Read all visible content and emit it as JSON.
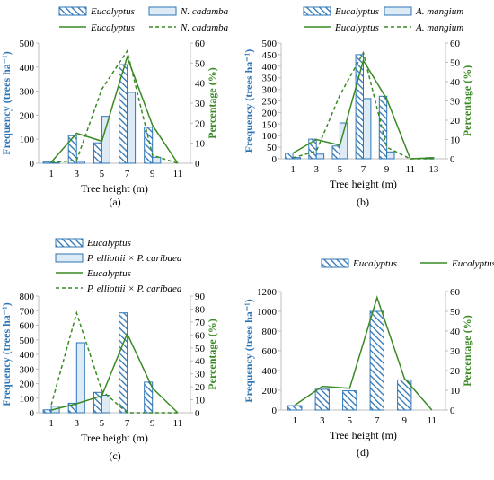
{
  "chart_data": [
    {
      "id": "a",
      "type": "bar+line",
      "panel_label": "(a)",
      "xlabel": "Tree height (m)",
      "ylabel_left": "Frequency (trees ha⁻¹)",
      "ylabel_right": "Percentage (%)",
      "categories": [
        "1",
        "3",
        "5",
        "7",
        "9",
        "11"
      ],
      "ylim_left": [
        0,
        500
      ],
      "yticks_left": [
        0,
        100,
        200,
        300,
        400,
        500
      ],
      "ylim_right": [
        0,
        60
      ],
      "yticks_right": [
        0,
        10,
        20,
        30,
        40,
        50,
        60
      ],
      "legend": [
        {
          "label": "Eucalyptus",
          "kind": "hatched-bar"
        },
        {
          "label": "N. cadamba",
          "kind": "light-bar"
        },
        {
          "label": "Eucalyptus",
          "kind": "solid-line"
        },
        {
          "label": "N. cadamba",
          "kind": "dashed-line"
        }
      ],
      "series": [
        {
          "name": "Eucalyptus",
          "role": "bar",
          "style": "hatched",
          "x": [
            1,
            3,
            5,
            7,
            9
          ],
          "values": [
            5,
            115,
            85,
            410,
            150
          ]
        },
        {
          "name": "N. cadamba",
          "role": "bar",
          "style": "light",
          "x": [
            1,
            3,
            5,
            7,
            9
          ],
          "values": [
            2,
            8,
            195,
            295,
            25
          ]
        },
        {
          "name": "Eucalyptus",
          "role": "line",
          "style": "solid",
          "x": [
            1,
            3,
            5,
            7,
            9,
            11
          ],
          "values": [
            0.6,
            15,
            11,
            53,
            19,
            0
          ]
        },
        {
          "name": "N. cadamba",
          "role": "line",
          "style": "dashed",
          "x": [
            1,
            3,
            5,
            7,
            9,
            11
          ],
          "values": [
            0.4,
            1.5,
            37,
            56,
            4,
            0
          ]
        }
      ]
    },
    {
      "id": "b",
      "type": "bar+line",
      "panel_label": "(b)",
      "xlabel": "Tree height (m)",
      "ylabel_left": "Frequency (trees ha⁻¹)",
      "ylabel_right": "Percentage (%)",
      "categories": [
        "1",
        "3",
        "5",
        "7",
        "9",
        "11",
        "13"
      ],
      "ylim_left": [
        0,
        500
      ],
      "yticks_left": [
        0,
        50,
        100,
        150,
        200,
        250,
        300,
        350,
        400,
        450,
        500
      ],
      "ylim_right": [
        0,
        60
      ],
      "yticks_right": [
        0,
        10,
        20,
        30,
        40,
        50,
        60
      ],
      "legend": [
        {
          "label": "Eucalyptus",
          "kind": "hatched-bar"
        },
        {
          "label": "A. mangium",
          "kind": "light-bar"
        },
        {
          "label": "Eucalyptus",
          "kind": "solid-line"
        },
        {
          "label": "A. mangium",
          "kind": "dashed-line"
        }
      ],
      "series": [
        {
          "name": "Eucalyptus",
          "role": "bar",
          "style": "hatched",
          "x": [
            1,
            3,
            5,
            7,
            9,
            11,
            13
          ],
          "values": [
            25,
            85,
            55,
            450,
            270,
            0,
            5
          ]
        },
        {
          "name": "A. mangium",
          "role": "bar",
          "style": "light",
          "x": [
            1,
            3,
            5,
            7,
            9,
            11,
            13
          ],
          "values": [
            5,
            20,
            155,
            260,
            30,
            0,
            0
          ]
        },
        {
          "name": "Eucalyptus",
          "role": "line",
          "style": "solid",
          "x": [
            1,
            3,
            5,
            7,
            9,
            11,
            13
          ],
          "values": [
            3,
            10,
            7,
            51,
            31,
            0,
            0.5
          ]
        },
        {
          "name": "A. mangium",
          "role": "line",
          "style": "dashed",
          "x": [
            1,
            3,
            5,
            7,
            9,
            11,
            13
          ],
          "values": [
            0.5,
            4,
            33,
            55,
            6,
            0,
            0
          ]
        }
      ]
    },
    {
      "id": "c",
      "type": "bar+line",
      "panel_label": "(c)",
      "xlabel": "Tree height (m)",
      "ylabel_left": "Frequency (trees ha⁻¹)",
      "ylabel_right": "Percentage (%)",
      "categories": [
        "1",
        "3",
        "5",
        "7",
        "9",
        "11"
      ],
      "ylim_left": [
        0,
        800
      ],
      "yticks_left": [
        0,
        100,
        200,
        300,
        400,
        500,
        600,
        700,
        800
      ],
      "ylim_right": [
        0,
        90
      ],
      "yticks_right": [
        0,
        10,
        20,
        30,
        40,
        50,
        60,
        70,
        80,
        90
      ],
      "legend": [
        {
          "label": "Eucalyptus",
          "kind": "hatched-bar"
        },
        {
          "label": "P. elliottii × P. caribaea",
          "kind": "light-bar"
        },
        {
          "label": "Eucalyptus",
          "kind": "solid-line"
        },
        {
          "label": "P. elliottii × P. caribaea",
          "kind": "dashed-line"
        }
      ],
      "series": [
        {
          "name": "Eucalyptus",
          "role": "bar",
          "style": "hatched",
          "x": [
            1,
            3,
            5,
            7,
            9
          ],
          "values": [
            20,
            65,
            140,
            685,
            210
          ]
        },
        {
          "name": "P. elliottii × P. caribaea",
          "role": "bar",
          "style": "light",
          "x": [
            1,
            3,
            5,
            7,
            9
          ],
          "values": [
            45,
            480,
            120,
            0,
            0
          ]
        },
        {
          "name": "Eucalyptus",
          "role": "line",
          "style": "solid",
          "x": [
            1,
            3,
            5,
            7,
            9,
            11
          ],
          "values": [
            2,
            7,
            13,
            61,
            19,
            0
          ]
        },
        {
          "name": "P. elliottii × P. caribaea",
          "role": "line",
          "style": "dashed",
          "x": [
            1,
            3,
            5,
            7,
            9,
            11
          ],
          "values": [
            6,
            77,
            17,
            0,
            0,
            0
          ]
        }
      ]
    },
    {
      "id": "d",
      "type": "bar+line",
      "panel_label": "(d)",
      "xlabel": "Tree height (m)",
      "ylabel_left": "Frequency (trees ha⁻¹)",
      "ylabel_right": "Percentage (%)",
      "categories": [
        "1",
        "3",
        "5",
        "7",
        "9",
        "11"
      ],
      "ylim_left": [
        0,
        1200
      ],
      "yticks_left": [
        0,
        200,
        400,
        600,
        800,
        1000,
        1200
      ],
      "ylim_right": [
        0,
        60
      ],
      "yticks_right": [
        0,
        10,
        20,
        30,
        40,
        50,
        60
      ],
      "legend": [
        {
          "label": "Eucalyptus",
          "kind": "hatched-bar"
        },
        {
          "label": "Eucalyptus",
          "kind": "solid-line"
        }
      ],
      "series": [
        {
          "name": "Eucalyptus",
          "role": "bar",
          "style": "hatched",
          "x": [
            1,
            3,
            5,
            7,
            9
          ],
          "values": [
            45,
            210,
            195,
            1000,
            305
          ]
        },
        {
          "name": "Eucalyptus",
          "role": "line",
          "style": "solid",
          "x": [
            1,
            3,
            5,
            7,
            9,
            11
          ],
          "values": [
            2.5,
            12,
            11,
            57,
            16,
            0
          ]
        }
      ]
    }
  ],
  "colors": {
    "bar_blue": "#2e75b6",
    "bar_light_fill": "#ddebf7",
    "line_green": "#3a8a24",
    "left_axis_label": "#2e75b6",
    "right_axis_label": "#3a8a24"
  }
}
